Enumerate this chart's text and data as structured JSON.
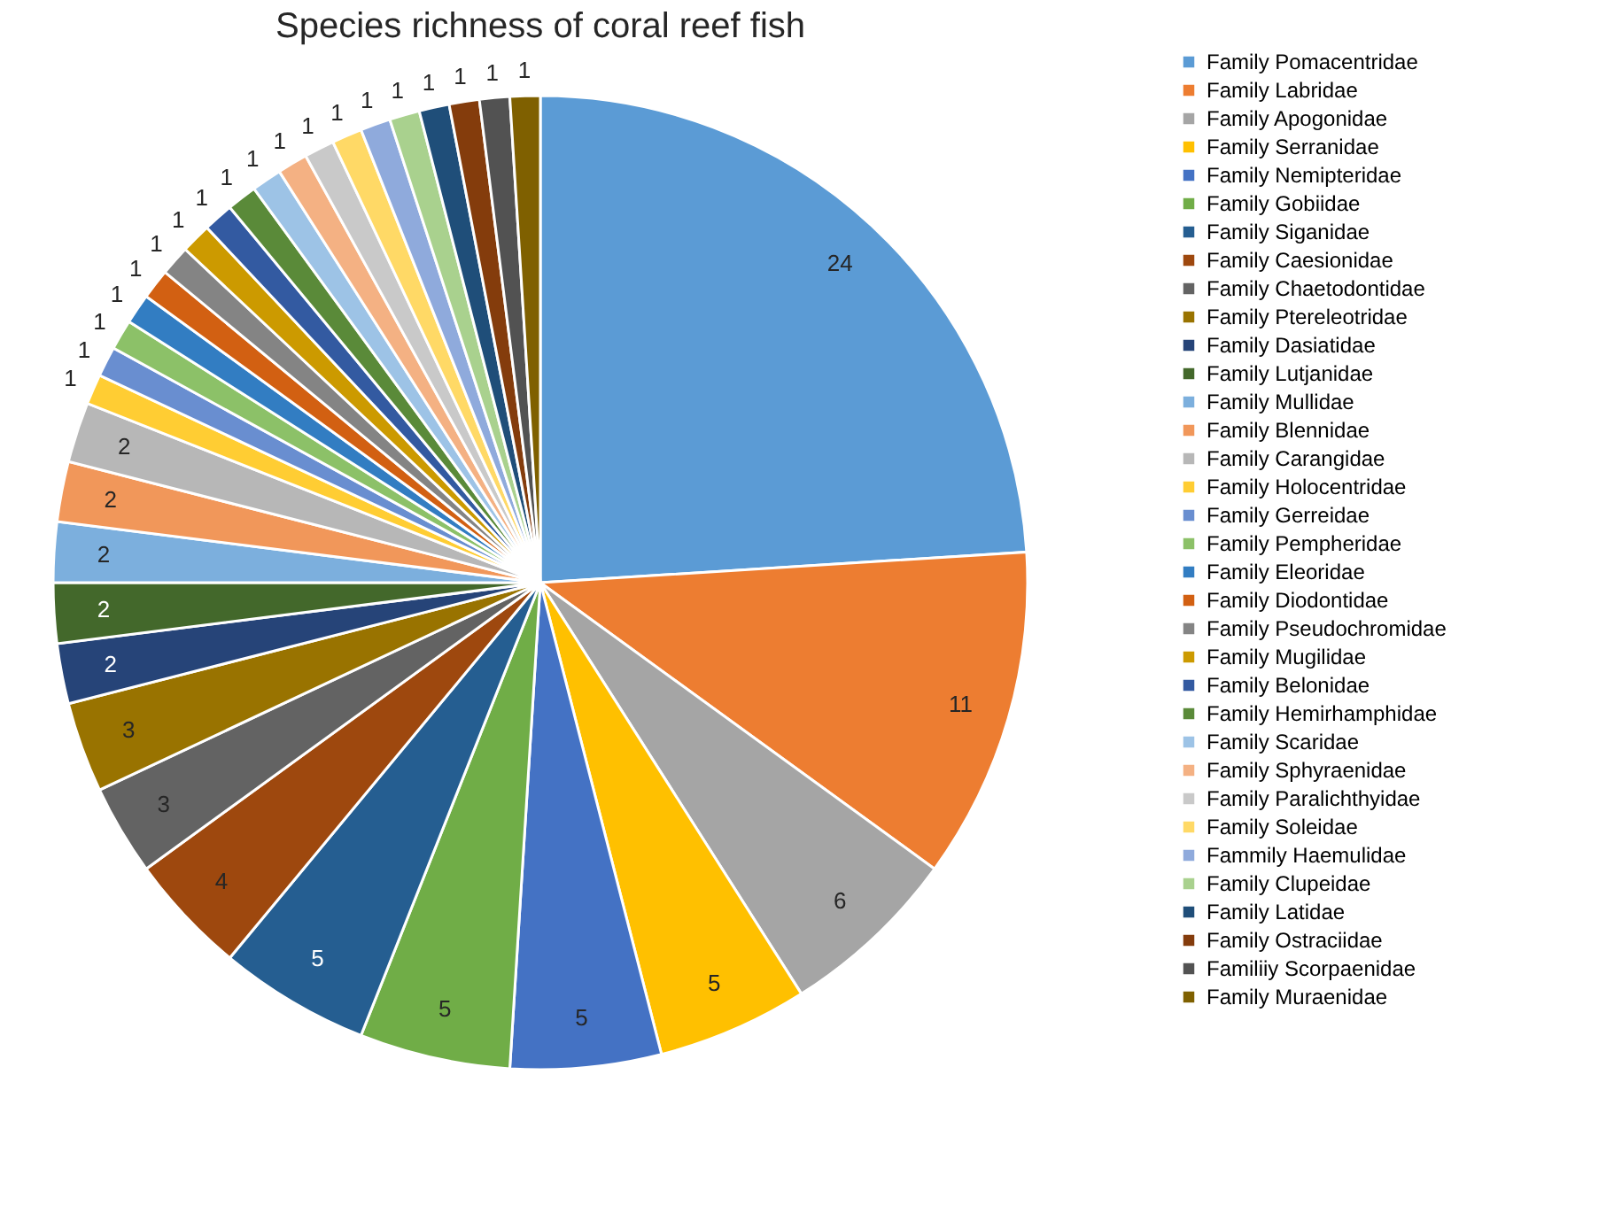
{
  "chart_data": {
    "type": "pie",
    "title": "Species richness of coral reef fish",
    "categories": [
      "Family Pomacentridae",
      "Family  Labridae",
      "Family  Apogonidae",
      "Family  Serranidae",
      "Family  Nemipteridae",
      "Family  Gobiidae",
      "Family  Siganidae",
      "Family  Caesionidae",
      "Family  Chaetodontidae",
      "Family  Ptereleotridae",
      "Family  Dasiatidae",
      "Family  Lutjanidae",
      "Family  Mullidae",
      "Family  Blennidae",
      "Family  Carangidae",
      "Family  Holocentridae",
      "Family  Gerreidae",
      "Family  Pempheridae",
      "Family  Eleoridae",
      "Family  Diodontidae",
      "Family  Pseudochromidae",
      "Family  Mugilidae",
      "Family  Belonidae",
      "Family  Hemirhamphidae",
      "Family  Scaridae",
      "Family  Sphyraenidae",
      "Family  Paralichthyidae",
      "Family  Soleidae",
      "Fammily  Haemulidae",
      "Family  Clupeidae",
      "Family  Latidae",
      "Family  Ostraciidae",
      "Familiiy  Scorpaenidae",
      "Family  Muraenidae"
    ],
    "values": [
      24,
      11,
      6,
      5,
      5,
      5,
      5,
      4,
      3,
      3,
      2,
      2,
      2,
      2,
      2,
      1,
      1,
      1,
      1,
      1,
      1,
      1,
      1,
      1,
      1,
      1,
      1,
      1,
      1,
      1,
      1,
      1,
      1,
      1
    ],
    "colors": [
      "#5b9bd5",
      "#ed7d31",
      "#a5a5a5",
      "#ffc000",
      "#4472c4",
      "#70ad47",
      "#255e91",
      "#9e480e",
      "#636363",
      "#997300",
      "#264478",
      "#43682b",
      "#7cafdd",
      "#f1975a",
      "#b7b7b7",
      "#ffcd33",
      "#698ed0",
      "#8cc168",
      "#327dc2",
      "#d26012",
      "#848484",
      "#cc9a00",
      "#335aa1",
      "#5a8a39",
      "#9dc3e6",
      "#f4b183",
      "#c9c9c9",
      "#ffd966",
      "#8faadc",
      "#a9d18e",
      "#1f4e79",
      "#843c0c",
      "#525252",
      "#7f6000"
    ],
    "data_labels": true,
    "legend": "right"
  }
}
